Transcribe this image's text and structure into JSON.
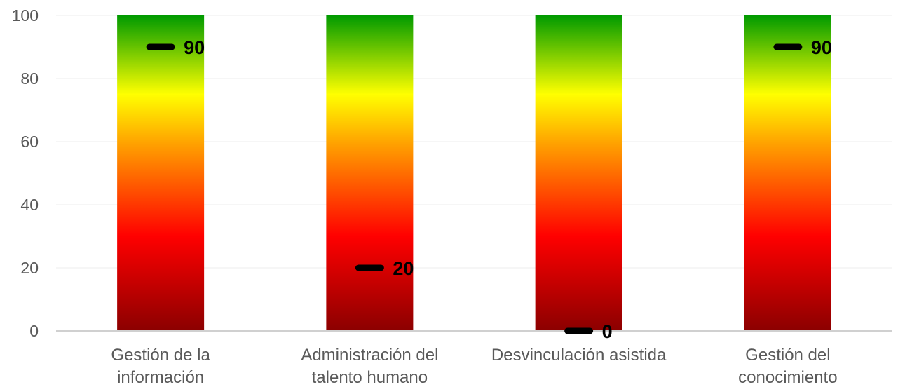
{
  "chart_data": {
    "type": "bar",
    "categories": [
      [
        "Gestión de la",
        "información"
      ],
      [
        "Administración del",
        "talento humano"
      ],
      [
        "Desvinculación asistida"
      ],
      [
        "Gestión del",
        "conocimiento"
      ]
    ],
    "values": [
      90,
      20,
      0,
      90
    ],
    "value_labels": [
      "90",
      "20",
      "0",
      "90"
    ],
    "ylim": [
      0,
      100
    ],
    "yticks": [
      0,
      20,
      40,
      60,
      80,
      100
    ],
    "ytick_labels": [
      "0",
      "20",
      "40",
      "60",
      "80",
      "100"
    ],
    "grid": true,
    "legend": "none",
    "bar_gradient_stops": [
      {
        "value": 0,
        "color": "#8b0000"
      },
      {
        "value": 30,
        "color": "#ff0000"
      },
      {
        "value": 60,
        "color": "#ffa500"
      },
      {
        "value": 75,
        "color": "#ffff00"
      },
      {
        "value": 100,
        "color": "#009a00"
      }
    ],
    "marker_color": "#000000"
  }
}
